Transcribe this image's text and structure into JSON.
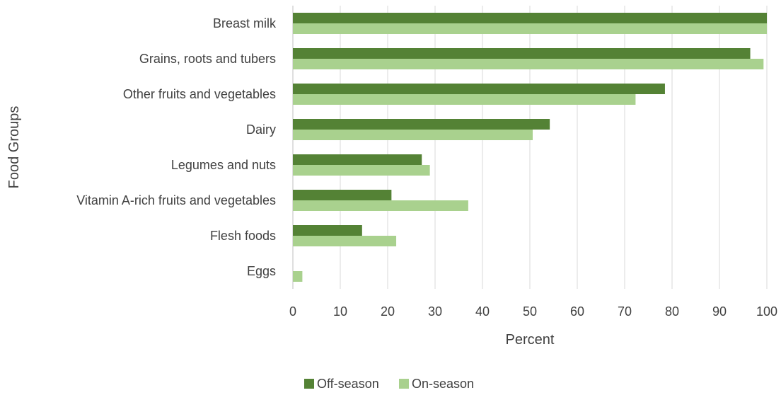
{
  "chart_data": {
    "type": "bar",
    "orientation": "horizontal",
    "title": "",
    "xlabel": "Percent",
    "ylabel": "Food Groups",
    "xlim": [
      0,
      100
    ],
    "xticks": [
      0,
      10,
      20,
      30,
      40,
      50,
      60,
      70,
      80,
      90,
      100
    ],
    "grid": true,
    "legend_position": "bottom",
    "categories": [
      "Breast milk",
      "Grains, roots and tubers",
      "Other fruits and vegetables",
      "Dairy",
      "Legumes and nuts",
      "Vitamin A-rich fruits and vegetables",
      "Flesh foods",
      "Eggs"
    ],
    "series": [
      {
        "name": "Off-season",
        "color": "#548235",
        "values": [
          100,
          96.5,
          78.5,
          54.2,
          27.2,
          20.8,
          14.6,
          0
        ]
      },
      {
        "name": "On-season",
        "color": "#a9d18e",
        "values": [
          100,
          99.3,
          72.3,
          50.6,
          28.9,
          37.0,
          21.8,
          2.0
        ]
      }
    ]
  }
}
